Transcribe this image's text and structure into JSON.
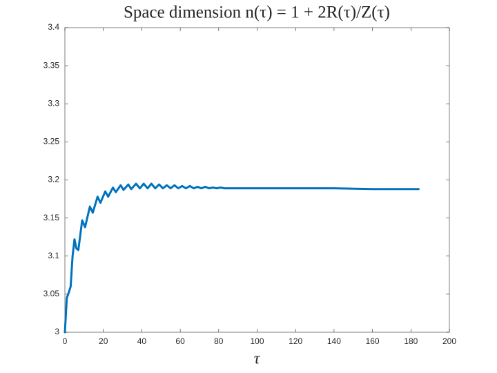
{
  "chart_data": {
    "type": "line",
    "title": "Space dimension n(τ) = 1 + 2R(τ)/Z(τ)",
    "x_label": "τ",
    "xlim": [
      0,
      200
    ],
    "xticks": [
      0,
      20,
      40,
      60,
      80,
      100,
      120,
      140,
      160,
      180,
      200
    ],
    "ylim": [
      3,
      3.4
    ],
    "yticks": [
      3,
      3.05,
      3.1,
      3.15,
      3.2,
      3.25,
      3.3,
      3.35,
      3.4
    ],
    "grid": false,
    "series": [
      {
        "color": "#0072bd",
        "x": [
          0,
          1,
          2,
          3,
          4,
          5,
          6,
          7,
          9,
          10.5,
          13,
          14.5,
          17,
          18.5,
          21,
          22.5,
          25,
          26.5,
          29,
          30.5,
          33,
          34.5,
          37,
          39,
          41,
          43,
          45,
          47,
          49,
          51,
          53,
          55,
          57,
          59,
          61,
          63,
          65,
          67,
          69,
          71,
          73,
          75,
          77,
          79,
          81,
          83,
          90,
          100,
          120,
          140,
          160,
          184
        ],
        "values": [
          3.0,
          3.045,
          3.052,
          3.06,
          3.1,
          3.122,
          3.11,
          3.108,
          3.147,
          3.138,
          3.165,
          3.157,
          3.178,
          3.17,
          3.185,
          3.178,
          3.19,
          3.184,
          3.193,
          3.187,
          3.194,
          3.188,
          3.195,
          3.189,
          3.195,
          3.189,
          3.195,
          3.189,
          3.194,
          3.189,
          3.193,
          3.189,
          3.193,
          3.189,
          3.192,
          3.189,
          3.192,
          3.189,
          3.191,
          3.189,
          3.191,
          3.189,
          3.19,
          3.189,
          3.19,
          3.189,
          3.189,
          3.189,
          3.189,
          3.189,
          3.188,
          3.188
        ]
      }
    ]
  }
}
